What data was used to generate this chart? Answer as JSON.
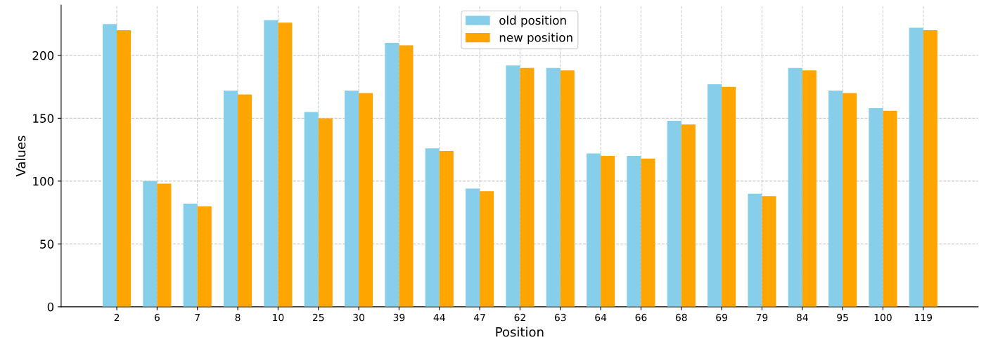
{
  "chart_data": {
    "type": "bar",
    "xlabel": "Position",
    "ylabel": "Values",
    "categories": [
      "2",
      "6",
      "7",
      "8",
      "10",
      "25",
      "30",
      "39",
      "44",
      "47",
      "62",
      "63",
      "64",
      "66",
      "68",
      "69",
      "79",
      "84",
      "95",
      "100",
      "119"
    ],
    "series": [
      {
        "name": "old position",
        "color": "#87ceeb",
        "values": [
          225,
          100,
          82,
          172,
          228,
          155,
          172,
          210,
          126,
          94,
          192,
          190,
          122,
          120,
          148,
          177,
          90,
          190,
          172,
          158,
          222
        ]
      },
      {
        "name": "new position",
        "color": "#ffa500",
        "values": [
          220,
          98,
          80,
          169,
          226,
          150,
          170,
          208,
          124,
          92,
          190,
          188,
          120,
          118,
          145,
          175,
          88,
          188,
          170,
          156,
          220
        ]
      }
    ],
    "ylim": [
      0,
      240
    ],
    "yticks": [
      0,
      50,
      100,
      150,
      200
    ],
    "grid": true,
    "legend": "top center"
  }
}
